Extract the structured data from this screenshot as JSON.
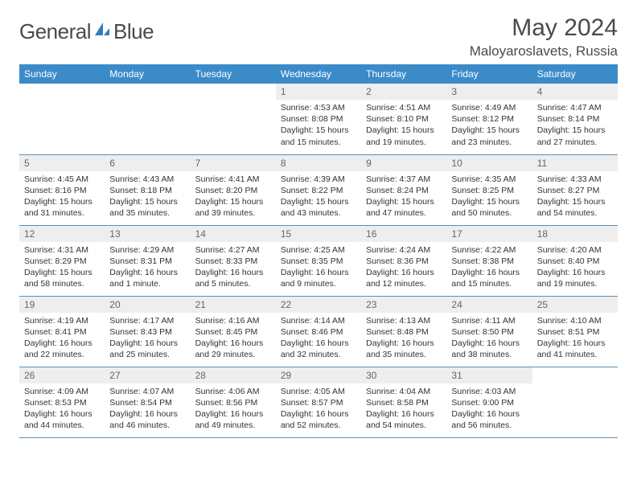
{
  "brand": {
    "name1": "General",
    "name2": "Blue"
  },
  "title": "May 2024",
  "location": "Maloyaroslavets, Russia",
  "colors": {
    "header_bg": "#3b8bc9",
    "header_fg": "#ffffff",
    "daynum_bg": "#eeeeee",
    "daynum_fg": "#666666",
    "row_divider": "#5a8fb8",
    "text": "#333333",
    "title_fg": "#4a4a4a",
    "logo_blue": "#2f7dc0"
  },
  "weekdays": [
    "Sunday",
    "Monday",
    "Tuesday",
    "Wednesday",
    "Thursday",
    "Friday",
    "Saturday"
  ],
  "weeks": [
    [
      {
        "day": "",
        "sunrise": "",
        "sunset": "",
        "daylight": ""
      },
      {
        "day": "",
        "sunrise": "",
        "sunset": "",
        "daylight": ""
      },
      {
        "day": "",
        "sunrise": "",
        "sunset": "",
        "daylight": ""
      },
      {
        "day": "1",
        "sunrise": "Sunrise: 4:53 AM",
        "sunset": "Sunset: 8:08 PM",
        "daylight": "Daylight: 15 hours and 15 minutes."
      },
      {
        "day": "2",
        "sunrise": "Sunrise: 4:51 AM",
        "sunset": "Sunset: 8:10 PM",
        "daylight": "Daylight: 15 hours and 19 minutes."
      },
      {
        "day": "3",
        "sunrise": "Sunrise: 4:49 AM",
        "sunset": "Sunset: 8:12 PM",
        "daylight": "Daylight: 15 hours and 23 minutes."
      },
      {
        "day": "4",
        "sunrise": "Sunrise: 4:47 AM",
        "sunset": "Sunset: 8:14 PM",
        "daylight": "Daylight: 15 hours and 27 minutes."
      }
    ],
    [
      {
        "day": "5",
        "sunrise": "Sunrise: 4:45 AM",
        "sunset": "Sunset: 8:16 PM",
        "daylight": "Daylight: 15 hours and 31 minutes."
      },
      {
        "day": "6",
        "sunrise": "Sunrise: 4:43 AM",
        "sunset": "Sunset: 8:18 PM",
        "daylight": "Daylight: 15 hours and 35 minutes."
      },
      {
        "day": "7",
        "sunrise": "Sunrise: 4:41 AM",
        "sunset": "Sunset: 8:20 PM",
        "daylight": "Daylight: 15 hours and 39 minutes."
      },
      {
        "day": "8",
        "sunrise": "Sunrise: 4:39 AM",
        "sunset": "Sunset: 8:22 PM",
        "daylight": "Daylight: 15 hours and 43 minutes."
      },
      {
        "day": "9",
        "sunrise": "Sunrise: 4:37 AM",
        "sunset": "Sunset: 8:24 PM",
        "daylight": "Daylight: 15 hours and 47 minutes."
      },
      {
        "day": "10",
        "sunrise": "Sunrise: 4:35 AM",
        "sunset": "Sunset: 8:25 PM",
        "daylight": "Daylight: 15 hours and 50 minutes."
      },
      {
        "day": "11",
        "sunrise": "Sunrise: 4:33 AM",
        "sunset": "Sunset: 8:27 PM",
        "daylight": "Daylight: 15 hours and 54 minutes."
      }
    ],
    [
      {
        "day": "12",
        "sunrise": "Sunrise: 4:31 AM",
        "sunset": "Sunset: 8:29 PM",
        "daylight": "Daylight: 15 hours and 58 minutes."
      },
      {
        "day": "13",
        "sunrise": "Sunrise: 4:29 AM",
        "sunset": "Sunset: 8:31 PM",
        "daylight": "Daylight: 16 hours and 1 minute."
      },
      {
        "day": "14",
        "sunrise": "Sunrise: 4:27 AM",
        "sunset": "Sunset: 8:33 PM",
        "daylight": "Daylight: 16 hours and 5 minutes."
      },
      {
        "day": "15",
        "sunrise": "Sunrise: 4:25 AM",
        "sunset": "Sunset: 8:35 PM",
        "daylight": "Daylight: 16 hours and 9 minutes."
      },
      {
        "day": "16",
        "sunrise": "Sunrise: 4:24 AM",
        "sunset": "Sunset: 8:36 PM",
        "daylight": "Daylight: 16 hours and 12 minutes."
      },
      {
        "day": "17",
        "sunrise": "Sunrise: 4:22 AM",
        "sunset": "Sunset: 8:38 PM",
        "daylight": "Daylight: 16 hours and 15 minutes."
      },
      {
        "day": "18",
        "sunrise": "Sunrise: 4:20 AM",
        "sunset": "Sunset: 8:40 PM",
        "daylight": "Daylight: 16 hours and 19 minutes."
      }
    ],
    [
      {
        "day": "19",
        "sunrise": "Sunrise: 4:19 AM",
        "sunset": "Sunset: 8:41 PM",
        "daylight": "Daylight: 16 hours and 22 minutes."
      },
      {
        "day": "20",
        "sunrise": "Sunrise: 4:17 AM",
        "sunset": "Sunset: 8:43 PM",
        "daylight": "Daylight: 16 hours and 25 minutes."
      },
      {
        "day": "21",
        "sunrise": "Sunrise: 4:16 AM",
        "sunset": "Sunset: 8:45 PM",
        "daylight": "Daylight: 16 hours and 29 minutes."
      },
      {
        "day": "22",
        "sunrise": "Sunrise: 4:14 AM",
        "sunset": "Sunset: 8:46 PM",
        "daylight": "Daylight: 16 hours and 32 minutes."
      },
      {
        "day": "23",
        "sunrise": "Sunrise: 4:13 AM",
        "sunset": "Sunset: 8:48 PM",
        "daylight": "Daylight: 16 hours and 35 minutes."
      },
      {
        "day": "24",
        "sunrise": "Sunrise: 4:11 AM",
        "sunset": "Sunset: 8:50 PM",
        "daylight": "Daylight: 16 hours and 38 minutes."
      },
      {
        "day": "25",
        "sunrise": "Sunrise: 4:10 AM",
        "sunset": "Sunset: 8:51 PM",
        "daylight": "Daylight: 16 hours and 41 minutes."
      }
    ],
    [
      {
        "day": "26",
        "sunrise": "Sunrise: 4:09 AM",
        "sunset": "Sunset: 8:53 PM",
        "daylight": "Daylight: 16 hours and 44 minutes."
      },
      {
        "day": "27",
        "sunrise": "Sunrise: 4:07 AM",
        "sunset": "Sunset: 8:54 PM",
        "daylight": "Daylight: 16 hours and 46 minutes."
      },
      {
        "day": "28",
        "sunrise": "Sunrise: 4:06 AM",
        "sunset": "Sunset: 8:56 PM",
        "daylight": "Daylight: 16 hours and 49 minutes."
      },
      {
        "day": "29",
        "sunrise": "Sunrise: 4:05 AM",
        "sunset": "Sunset: 8:57 PM",
        "daylight": "Daylight: 16 hours and 52 minutes."
      },
      {
        "day": "30",
        "sunrise": "Sunrise: 4:04 AM",
        "sunset": "Sunset: 8:58 PM",
        "daylight": "Daylight: 16 hours and 54 minutes."
      },
      {
        "day": "31",
        "sunrise": "Sunrise: 4:03 AM",
        "sunset": "Sunset: 9:00 PM",
        "daylight": "Daylight: 16 hours and 56 minutes."
      },
      {
        "day": "",
        "sunrise": "",
        "sunset": "",
        "daylight": ""
      }
    ]
  ]
}
